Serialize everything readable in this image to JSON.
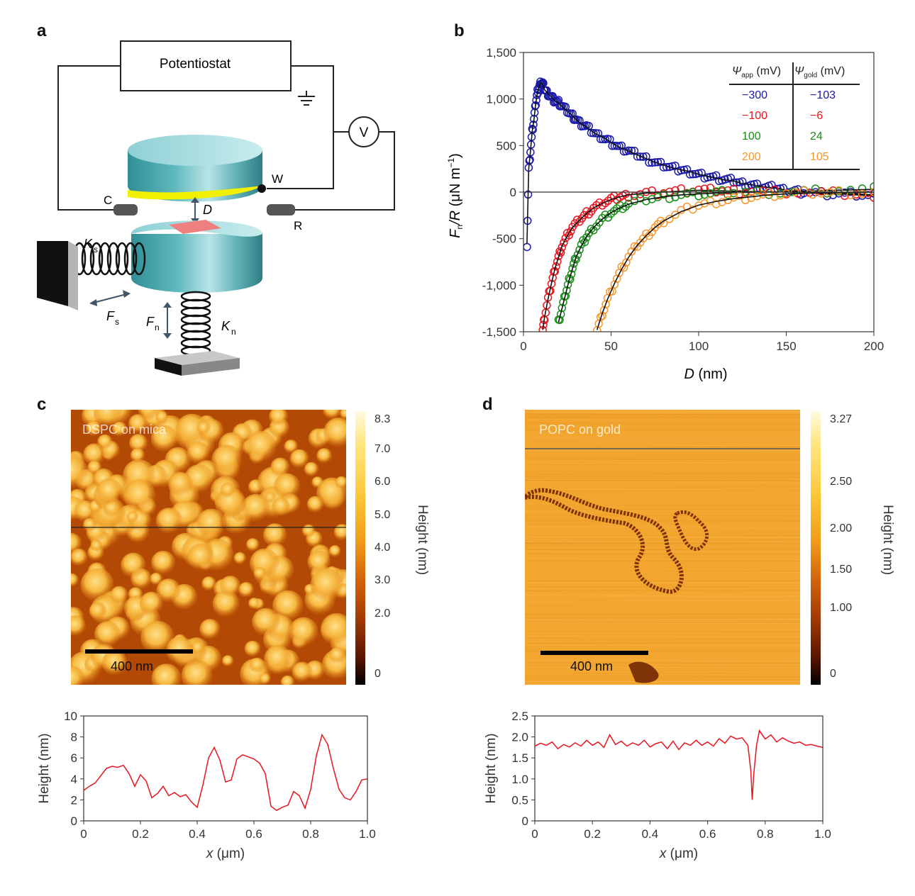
{
  "panels": {
    "a": "a",
    "b": "b",
    "c": "c",
    "d": "d"
  },
  "schematic": {
    "potentiostat": "Potentiostat",
    "voltmeter": "V",
    "working": "W",
    "counter": "C",
    "reference": "R",
    "distance": "D",
    "shear_spring_main": "K",
    "shear_spring_sub": "s",
    "normal_spring_main": "K",
    "normal_spring_sub": "n",
    "shear_force_main": "F",
    "shear_force_sub": "s",
    "normal_force_main": "F",
    "normal_force_sub": "n"
  },
  "colors": {
    "blue": "#1a1aa8",
    "red": "#e8141e",
    "green": "#1a8c1a",
    "orange": "#f5962a",
    "fit": "#111111",
    "profile": "#e8141e"
  },
  "table": {
    "header_app_sym": "Ψ",
    "header_app_sub": "app",
    "header_app_unit": " (mV)",
    "header_gold_sym": "Ψ",
    "header_gold_sub": "gold",
    "header_gold_unit": " (mV)",
    "rows": [
      {
        "app": "−300",
        "gold": "−103",
        "color": "#1a1aa8"
      },
      {
        "app": "−100",
        "gold": "−6",
        "color": "#e8141e"
      },
      {
        "app": "100",
        "gold": "24",
        "color": "#1a8c1a"
      },
      {
        "app": "200",
        "gold": "105",
        "color": "#f5962a"
      }
    ]
  },
  "chart_data": [
    {
      "type": "scatter",
      "panel": "b",
      "xlabel_sym": "D",
      "xlabel_unit": " (nm)",
      "ylabel_sym1": "F",
      "ylabel_sub": "n",
      "ylabel_sym2": "/R",
      "ylabel_unit": " (μN m",
      "ylabel_exp": "−1",
      "ylabel_close": ")",
      "xlim": [
        0,
        200
      ],
      "ylim": [
        -1500,
        1500
      ],
      "xticks": [
        "0",
        "50",
        "100",
        "150",
        "200"
      ],
      "yticks": [
        "1,500",
        "1,000",
        "500",
        "0",
        "-500",
        "-1,000",
        "-1,500"
      ],
      "series": [
        {
          "color": "#1a1aa8",
          "points": [
            [
              2,
              -560
            ],
            [
              3,
              250
            ],
            [
              4,
              440
            ],
            [
              5,
              650
            ],
            [
              6,
              780
            ],
            [
              7,
              950
            ],
            [
              8,
              1080
            ],
            [
              9,
              1130
            ],
            [
              10,
              1180
            ],
            [
              11,
              1160
            ],
            [
              12,
              1100
            ],
            [
              14,
              1060
            ],
            [
              16,
              1020
            ],
            [
              18,
              980
            ],
            [
              20,
              960
            ],
            [
              22,
              920
            ],
            [
              25,
              870
            ],
            [
              28,
              820
            ],
            [
              30,
              780
            ],
            [
              33,
              730
            ],
            [
              36,
              700
            ],
            [
              40,
              640
            ],
            [
              44,
              600
            ],
            [
              48,
              560
            ],
            [
              52,
              510
            ],
            [
              56,
              470
            ],
            [
              60,
              440
            ],
            [
              65,
              400
            ],
            [
              70,
              360
            ],
            [
              75,
              320
            ],
            [
              80,
              290
            ],
            [
              85,
              260
            ],
            [
              90,
              240
            ],
            [
              95,
              220
            ],
            [
              100,
              190
            ],
            [
              105,
              170
            ],
            [
              110,
              150
            ],
            [
              115,
              130
            ],
            [
              120,
              120
            ],
            [
              125,
              90
            ],
            [
              130,
              80
            ],
            [
              135,
              60
            ],
            [
              140,
              50
            ],
            [
              145,
              40
            ],
            [
              150,
              20
            ],
            [
              155,
              10
            ],
            [
              160,
              0
            ],
            [
              170,
              -20
            ],
            [
              180,
              -20
            ],
            [
              190,
              -30
            ],
            [
              200,
              -40
            ]
          ]
        },
        {
          "color": "#e8141e",
          "points": [
            [
              11,
              -1480
            ],
            [
              12,
              -1350
            ],
            [
              14,
              -1150
            ],
            [
              16,
              -980
            ],
            [
              18,
              -820
            ],
            [
              20,
              -700
            ],
            [
              22,
              -580
            ],
            [
              25,
              -470
            ],
            [
              28,
              -380
            ],
            [
              32,
              -300
            ],
            [
              36,
              -230
            ],
            [
              40,
              -170
            ],
            [
              45,
              -120
            ],
            [
              50,
              -80
            ],
            [
              55,
              -50
            ],
            [
              60,
              -30
            ],
            [
              70,
              -10
            ],
            [
              80,
              0
            ],
            [
              90,
              10
            ],
            [
              100,
              20
            ],
            [
              110,
              15
            ],
            [
              120,
              10
            ],
            [
              130,
              5
            ],
            [
              150,
              0
            ],
            [
              170,
              -10
            ],
            [
              190,
              -20
            ],
            [
              200,
              -30
            ]
          ]
        },
        {
          "color": "#1a8c1a",
          "points": [
            [
              20,
              -1400
            ],
            [
              22,
              -1250
            ],
            [
              24,
              -1100
            ],
            [
              26,
              -950
            ],
            [
              28,
              -820
            ],
            [
              30,
              -700
            ],
            [
              33,
              -580
            ],
            [
              36,
              -480
            ],
            [
              40,
              -380
            ],
            [
              45,
              -290
            ],
            [
              50,
              -220
            ],
            [
              55,
              -170
            ],
            [
              60,
              -130
            ],
            [
              70,
              -80
            ],
            [
              80,
              -50
            ],
            [
              90,
              -30
            ],
            [
              100,
              -20
            ],
            [
              110,
              -10
            ],
            [
              120,
              -5
            ],
            [
              140,
              0
            ],
            [
              160,
              10
            ],
            [
              180,
              20
            ],
            [
              200,
              30
            ]
          ]
        },
        {
          "color": "#f5962a",
          "points": [
            [
              42,
              -1480
            ],
            [
              45,
              -1300
            ],
            [
              48,
              -1150
            ],
            [
              52,
              -980
            ],
            [
              56,
              -830
            ],
            [
              60,
              -700
            ],
            [
              65,
              -570
            ],
            [
              70,
              -470
            ],
            [
              75,
              -380
            ],
            [
              80,
              -310
            ],
            [
              90,
              -210
            ],
            [
              100,
              -140
            ],
            [
              110,
              -100
            ],
            [
              120,
              -70
            ],
            [
              130,
              -50
            ],
            [
              140,
              -30
            ],
            [
              150,
              -20
            ],
            [
              165,
              -10
            ],
            [
              180,
              -5
            ],
            [
              200,
              0
            ]
          ]
        }
      ]
    },
    {
      "type": "line",
      "panel": "c-profile",
      "xlabel_sym": "x",
      "xlabel_unit": " (μm)",
      "ylabel": "Height (nm)",
      "xlim": [
        0,
        1.0
      ],
      "ylim": [
        0,
        10
      ],
      "xticks": [
        "0",
        "0.2",
        "0.4",
        "0.6",
        "0.8",
        "1.0"
      ],
      "yticks": [
        "10",
        "8",
        "6",
        "4",
        "2",
        "0"
      ],
      "x": [
        0,
        0.02,
        0.04,
        0.06,
        0.08,
        0.1,
        0.12,
        0.14,
        0.16,
        0.18,
        0.2,
        0.22,
        0.24,
        0.26,
        0.28,
        0.3,
        0.32,
        0.34,
        0.36,
        0.38,
        0.4,
        0.42,
        0.44,
        0.46,
        0.48,
        0.5,
        0.52,
        0.54,
        0.56,
        0.58,
        0.6,
        0.62,
        0.64,
        0.66,
        0.68,
        0.7,
        0.72,
        0.74,
        0.76,
        0.78,
        0.8,
        0.82,
        0.84,
        0.86,
        0.88,
        0.9,
        0.92,
        0.94,
        0.96,
        0.98,
        1.0
      ],
      "y": [
        2.9,
        3.3,
        3.6,
        4.3,
        5.0,
        5.2,
        5.1,
        5.3,
        4.5,
        3.3,
        4.4,
        3.8,
        2.2,
        2.6,
        3.3,
        2.4,
        2.7,
        2.3,
        2.5,
        1.8,
        1.3,
        3.4,
        6.0,
        7.0,
        5.8,
        3.7,
        3.9,
        5.9,
        6.3,
        6.1,
        5.9,
        5.5,
        4.5,
        1.4,
        1.0,
        1.3,
        1.5,
        2.8,
        2.4,
        1.2,
        3.0,
        6.2,
        8.2,
        7.3,
        5.0,
        3.0,
        2.2,
        2.0,
        2.8,
        3.9,
        4.0
      ]
    },
    {
      "type": "line",
      "panel": "d-profile",
      "xlabel_sym": "x",
      "xlabel_unit": " (μm)",
      "ylabel": "Height (nm)",
      "xlim": [
        0,
        1.0
      ],
      "ylim": [
        0,
        2.5
      ],
      "xticks": [
        "0",
        "0.2",
        "0.4",
        "0.6",
        "0.8",
        "1.0"
      ],
      "yticks": [
        "2.5",
        "2.0",
        "1.5",
        "1.0",
        "0.5",
        "0"
      ],
      "x": [
        0,
        0.02,
        0.04,
        0.06,
        0.08,
        0.1,
        0.12,
        0.14,
        0.16,
        0.18,
        0.2,
        0.22,
        0.24,
        0.26,
        0.28,
        0.3,
        0.32,
        0.34,
        0.36,
        0.38,
        0.4,
        0.42,
        0.44,
        0.46,
        0.48,
        0.5,
        0.52,
        0.54,
        0.56,
        0.58,
        0.6,
        0.62,
        0.64,
        0.66,
        0.68,
        0.7,
        0.72,
        0.74,
        0.75,
        0.755,
        0.76,
        0.77,
        0.78,
        0.8,
        0.82,
        0.84,
        0.86,
        0.88,
        0.9,
        0.92,
        0.94,
        0.96,
        0.98,
        1.0
      ],
      "y": [
        1.78,
        1.85,
        1.8,
        1.88,
        1.72,
        1.82,
        1.76,
        1.86,
        1.78,
        1.92,
        1.8,
        1.88,
        1.75,
        2.05,
        1.82,
        1.9,
        1.78,
        1.86,
        1.8,
        1.92,
        1.76,
        1.84,
        1.88,
        1.72,
        1.9,
        1.7,
        1.86,
        1.8,
        1.92,
        1.8,
        1.88,
        1.78,
        1.96,
        1.85,
        2.02,
        1.95,
        1.98,
        1.8,
        1.2,
        0.5,
        1.1,
        1.8,
        2.15,
        1.95,
        2.05,
        1.88,
        1.98,
        1.9,
        1.85,
        1.88,
        1.8,
        1.82,
        1.78,
        1.75
      ]
    }
  ],
  "afm_c": {
    "label": "DSPC on mica",
    "scalebar": "400 nm",
    "colorbar_title": "Height (nm)",
    "colorbar_ticks": [
      "8.3",
      "7.0",
      "6.0",
      "5.0",
      "4.0",
      "3.0",
      "2.0",
      "0"
    ]
  },
  "afm_d": {
    "label": "POPC on gold",
    "scalebar": "400 nm",
    "colorbar_title": "Height (nm)",
    "colorbar_ticks": [
      "3.27",
      "2.50",
      "2.00",
      "1.50",
      "1.00",
      "0"
    ]
  }
}
